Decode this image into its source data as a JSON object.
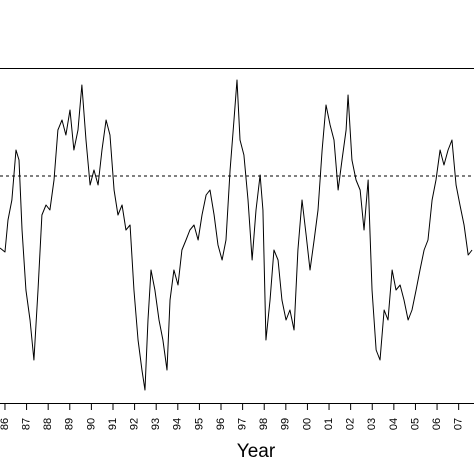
{
  "chart_data": {
    "type": "line",
    "x_label": "Year",
    "x": [
      1985.77,
      1986.0,
      1986.14,
      1986.32,
      1986.51,
      1986.65,
      1986.79,
      1986.97,
      1987.16,
      1987.34,
      1987.53,
      1987.71,
      1987.9,
      1988.08,
      1988.27,
      1988.45,
      1988.64,
      1988.82,
      1989.01,
      1989.19,
      1989.38,
      1989.56,
      1989.75,
      1989.94,
      1990.12,
      1990.31,
      1990.49,
      1990.68,
      1990.86,
      1991.05,
      1991.23,
      1991.42,
      1991.6,
      1991.79,
      1991.97,
      1992.16,
      1992.34,
      1992.48,
      1992.62,
      1992.76,
      1992.94,
      1993.13,
      1993.31,
      1993.5,
      1993.64,
      1993.82,
      1994.01,
      1994.19,
      1994.38,
      1994.56,
      1994.75,
      1994.94,
      1995.12,
      1995.31,
      1995.49,
      1995.68,
      1995.86,
      1996.05,
      1996.23,
      1996.42,
      1996.6,
      1996.74,
      1996.88,
      1997.06,
      1997.25,
      1997.44,
      1997.62,
      1997.81,
      1997.94,
      1998.08,
      1998.27,
      1998.45,
      1998.64,
      1998.82,
      1999.01,
      1999.19,
      1999.38,
      1999.56,
      1999.75,
      1999.94,
      2000.12,
      2000.31,
      2000.49,
      2000.68,
      2000.86,
      2001.05,
      2001.23,
      2001.42,
      2001.6,
      2001.79,
      2001.88,
      2002.06,
      2002.25,
      2002.44,
      2002.62,
      2002.81,
      2002.99,
      2003.18,
      2003.36,
      2003.55,
      2003.73,
      2003.92,
      2004.1,
      2004.29,
      2004.47,
      2004.66,
      2004.84,
      2005.03,
      2005.21,
      2005.4,
      2005.58,
      2005.77,
      2005.95,
      2006.14,
      2006.32,
      2006.51,
      2006.69,
      2006.88,
      2007.06,
      2007.25,
      2007.44,
      2007.62
    ],
    "series": [
      {
        "color": "#000000",
        "values": [
          155,
          151,
          183,
          203,
          253,
          243,
          173,
          113,
          83,
          43,
          113,
          188,
          198,
          193,
          223,
          273,
          283,
          268,
          293,
          253,
          273,
          318,
          263,
          218,
          233,
          218,
          253,
          283,
          268,
          213,
          188,
          198,
          173,
          178,
          113,
          63,
          33,
          13,
          83,
          133,
          113,
          83,
          63,
          33,
          103,
          133,
          118,
          153,
          163,
          173,
          178,
          163,
          188,
          208,
          213,
          188,
          158,
          143,
          163,
          233,
          283,
          323,
          263,
          248,
          203,
          143,
          193,
          228,
          193,
          63,
          103,
          153,
          143,
          103,
          83,
          93,
          73,
          153,
          203,
          168,
          133,
          163,
          193,
          253,
          298,
          278,
          263,
          213,
          243,
          273,
          308,
          243,
          223,
          213,
          173,
          223,
          113,
          53,
          43,
          93,
          83,
          133,
          113,
          118,
          103,
          83,
          93,
          113,
          133,
          153,
          163,
          203,
          223,
          253,
          238,
          253,
          263,
          218,
          198,
          178,
          148,
          153
        ]
      }
    ],
    "reference_line": 227,
    "xlim": [
      1985.77,
      2007.71
    ],
    "ylim": [
      0,
      335
    ],
    "xticks": [
      {
        "value": 1986,
        "label": "86"
      },
      {
        "value": 1987,
        "label": "87"
      },
      {
        "value": 1988,
        "label": "88"
      },
      {
        "value": 1989,
        "label": "89"
      },
      {
        "value": 1990,
        "label": "90"
      },
      {
        "value": 1991,
        "label": "91"
      },
      {
        "value": 1992,
        "label": "92"
      },
      {
        "value": 1993,
        "label": "93"
      },
      {
        "value": 1994,
        "label": "94"
      },
      {
        "value": 1995,
        "label": "95"
      },
      {
        "value": 1996,
        "label": "96"
      },
      {
        "value": 1997,
        "label": "97"
      },
      {
        "value": 1998,
        "label": "98"
      },
      {
        "value": 1999,
        "label": "99"
      },
      {
        "value": 2000,
        "label": "00"
      },
      {
        "value": 2001,
        "label": "01"
      },
      {
        "value": 2002,
        "label": "02"
      },
      {
        "value": 2003,
        "label": "03"
      },
      {
        "value": 2004,
        "label": "04"
      },
      {
        "value": 2005,
        "label": "05"
      },
      {
        "value": 2006,
        "label": "06"
      },
      {
        "value": 2007,
        "label": "07"
      }
    ]
  }
}
